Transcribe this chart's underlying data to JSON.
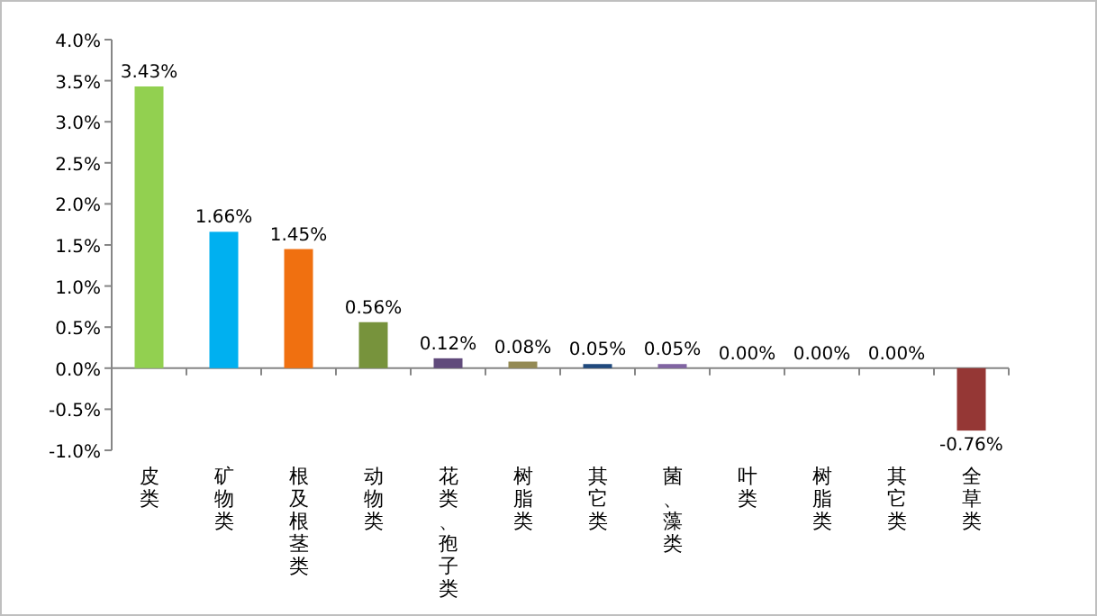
{
  "chart_data": {
    "type": "bar",
    "categories": [
      "皮类",
      "矿物类",
      "根及根茎类",
      "动物类",
      "花类、孢子类",
      "树脂类",
      "其它类",
      "菌、藻类",
      "叶类",
      "树脂类",
      "其它类",
      "全草类"
    ],
    "values": [
      3.43,
      1.66,
      1.45,
      0.56,
      0.12,
      0.08,
      0.05,
      0.05,
      0.0,
      0.0,
      0.0,
      -0.76
    ],
    "colors": [
      "#92d050",
      "#00b0f0",
      "#f07010",
      "#77933c",
      "#604a7b",
      "#948a54",
      "#1f497d",
      "#8064a2",
      "#4f81bd",
      "#c0504d",
      "#9bbb59",
      "#953735"
    ],
    "value_labels": [
      "3.43%",
      "1.66%",
      "1.45%",
      "0.56%",
      "0.12%",
      "0.08%",
      "0.05%",
      "0.05%",
      "0.00%",
      "0.00%",
      "0.00%",
      "-0.76%"
    ],
    "ylim": [
      -1.0,
      4.0
    ],
    "yticks": [
      {
        "value": -1.0,
        "label": "-1.0%"
      },
      {
        "value": -0.5,
        "label": "-0.5%"
      },
      {
        "value": 0.0,
        "label": "0.0%"
      },
      {
        "value": 0.5,
        "label": "0.5%"
      },
      {
        "value": 1.0,
        "label": "1.0%"
      },
      {
        "value": 1.5,
        "label": "1.5%"
      },
      {
        "value": 2.0,
        "label": "2.0%"
      },
      {
        "value": 2.5,
        "label": "2.5%"
      },
      {
        "value": 3.0,
        "label": "3.0%"
      },
      {
        "value": 3.5,
        "label": "3.5%"
      },
      {
        "value": 4.0,
        "label": "4.0%"
      }
    ],
    "data_labels": false
  }
}
